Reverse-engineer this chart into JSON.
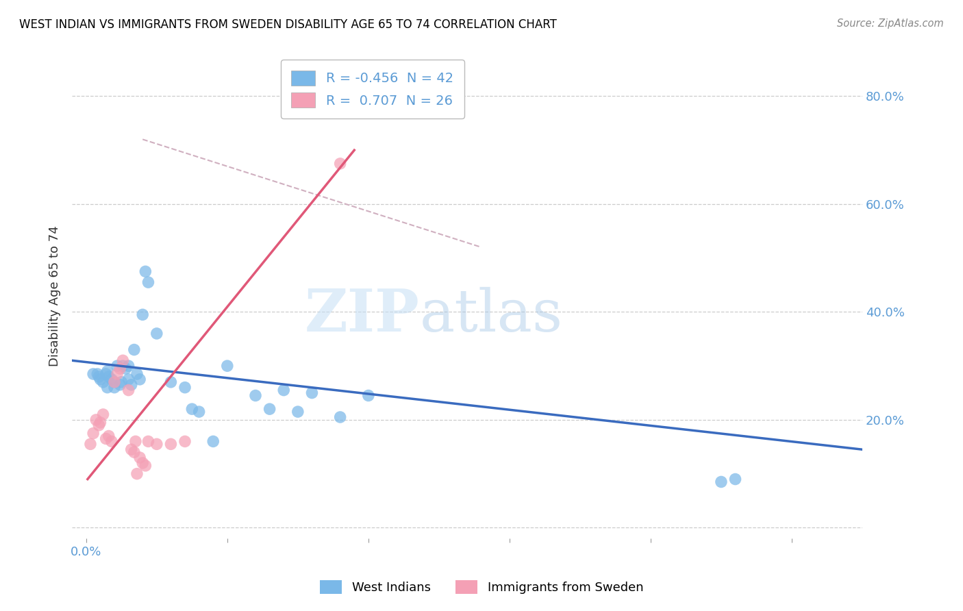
{
  "title": "WEST INDIAN VS IMMIGRANTS FROM SWEDEN DISABILITY AGE 65 TO 74 CORRELATION CHART",
  "source": "Source: ZipAtlas.com",
  "ylabel": "Disability Age 65 to 74",
  "x_ticks": [
    0.0,
    0.01,
    0.02,
    0.03,
    0.04,
    0.05
  ],
  "xlim": [
    -0.001,
    0.055
  ],
  "ylim": [
    -0.02,
    0.88
  ],
  "y_ticks": [
    0.0,
    0.2,
    0.4,
    0.6,
    0.8
  ],
  "y_ticklabels_right": [
    "",
    "20.0%",
    "40.0%",
    "60.0%",
    "80.0%"
  ],
  "blue_color": "#7ab8e8",
  "pink_color": "#f4a0b5",
  "line_blue": "#3a6bbf",
  "line_pink": "#e05878",
  "dashed_color": "#d0b0c0",
  "watermark_zip": "ZIP",
  "watermark_atlas": "atlas",
  "blue_scatter": [
    [
      0.0005,
      0.285
    ],
    [
      0.001,
      0.275
    ],
    [
      0.0012,
      0.27
    ],
    [
      0.0014,
      0.285
    ],
    [
      0.0015,
      0.29
    ],
    [
      0.0016,
      0.28
    ],
    [
      0.0018,
      0.275
    ],
    [
      0.002,
      0.27
    ],
    [
      0.0022,
      0.3
    ],
    [
      0.0024,
      0.265
    ],
    [
      0.0026,
      0.3
    ],
    [
      0.0028,
      0.295
    ],
    [
      0.003,
      0.3
    ],
    [
      0.0032,
      0.265
    ],
    [
      0.0034,
      0.33
    ],
    [
      0.0036,
      0.285
    ],
    [
      0.0038,
      0.275
    ],
    [
      0.004,
      0.395
    ],
    [
      0.0042,
      0.475
    ],
    [
      0.0044,
      0.455
    ],
    [
      0.005,
      0.36
    ],
    [
      0.006,
      0.27
    ],
    [
      0.007,
      0.26
    ],
    [
      0.0075,
      0.22
    ],
    [
      0.008,
      0.215
    ],
    [
      0.009,
      0.16
    ],
    [
      0.01,
      0.3
    ],
    [
      0.012,
      0.245
    ],
    [
      0.013,
      0.22
    ],
    [
      0.014,
      0.255
    ],
    [
      0.015,
      0.215
    ],
    [
      0.016,
      0.25
    ],
    [
      0.018,
      0.205
    ],
    [
      0.02,
      0.245
    ],
    [
      0.0008,
      0.285
    ],
    [
      0.0009,
      0.28
    ],
    [
      0.0015,
      0.26
    ],
    [
      0.002,
      0.26
    ],
    [
      0.0025,
      0.27
    ],
    [
      0.003,
      0.275
    ],
    [
      0.045,
      0.085
    ],
    [
      0.046,
      0.09
    ]
  ],
  "pink_scatter": [
    [
      0.0003,
      0.155
    ],
    [
      0.0005,
      0.175
    ],
    [
      0.0007,
      0.2
    ],
    [
      0.0009,
      0.19
    ],
    [
      0.001,
      0.195
    ],
    [
      0.0012,
      0.21
    ],
    [
      0.0014,
      0.165
    ],
    [
      0.0016,
      0.17
    ],
    [
      0.0018,
      0.16
    ],
    [
      0.002,
      0.27
    ],
    [
      0.0022,
      0.285
    ],
    [
      0.0024,
      0.295
    ],
    [
      0.0026,
      0.31
    ],
    [
      0.003,
      0.255
    ],
    [
      0.0032,
      0.145
    ],
    [
      0.0034,
      0.14
    ],
    [
      0.0036,
      0.1
    ],
    [
      0.0038,
      0.13
    ],
    [
      0.004,
      0.12
    ],
    [
      0.0042,
      0.115
    ],
    [
      0.0044,
      0.16
    ],
    [
      0.005,
      0.155
    ],
    [
      0.006,
      0.155
    ],
    [
      0.007,
      0.16
    ],
    [
      0.018,
      0.675
    ],
    [
      0.0035,
      0.16
    ]
  ],
  "blue_line_x": [
    -0.001,
    0.055
  ],
  "blue_line_y": [
    0.31,
    0.145
  ],
  "pink_line_x": [
    0.0001,
    0.019
  ],
  "pink_line_y": [
    0.09,
    0.7
  ],
  "dashed_line_x": [
    0.004,
    0.028
  ],
  "dashed_line_y": [
    0.72,
    0.52
  ]
}
